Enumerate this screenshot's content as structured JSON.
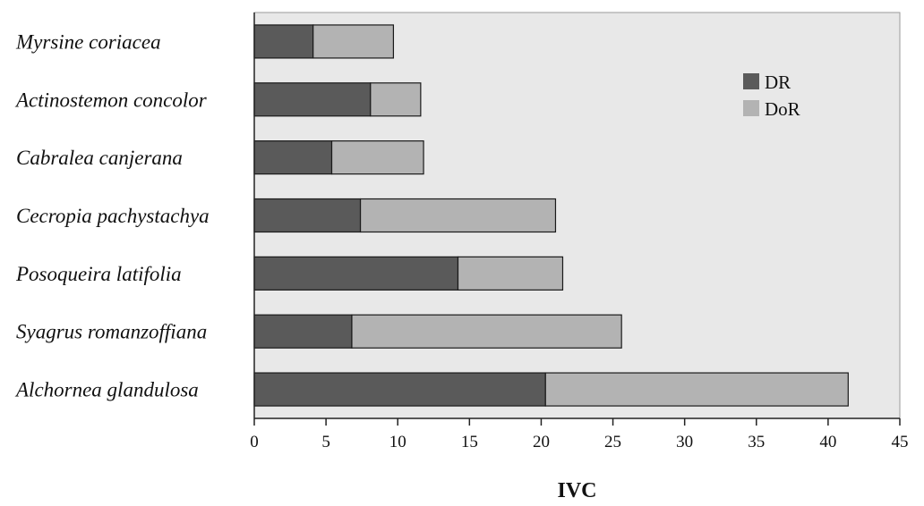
{
  "chart_data": {
    "type": "bar",
    "orientation": "horizontal",
    "stacked": true,
    "categories": [
      "Myrsine coriacea",
      "Actinostemon concolor",
      "Cabralea canjerana",
      "Cecropia pachystachya",
      "Posoqueira latifolia",
      "Syagrus romanzoffiana",
      "Alchornea glandulosa"
    ],
    "series": [
      {
        "name": "DR",
        "color": "#5a5a5a",
        "values": [
          4.1,
          8.1,
          5.4,
          7.4,
          14.2,
          6.8,
          20.3
        ]
      },
      {
        "name": "DoR",
        "color": "#b3b3b3",
        "values": [
          5.6,
          3.5,
          6.4,
          13.6,
          7.3,
          18.8,
          21.1
        ]
      }
    ],
    "xlabel": "IVC",
    "ylabel": "",
    "xlim": [
      0,
      45
    ],
    "xticks": [
      "0",
      "5",
      "10",
      "15",
      "20",
      "25",
      "30",
      "35",
      "40",
      "45"
    ],
    "legend_position": "top-right",
    "grid": false,
    "plot_background": "#e8e8e8"
  }
}
